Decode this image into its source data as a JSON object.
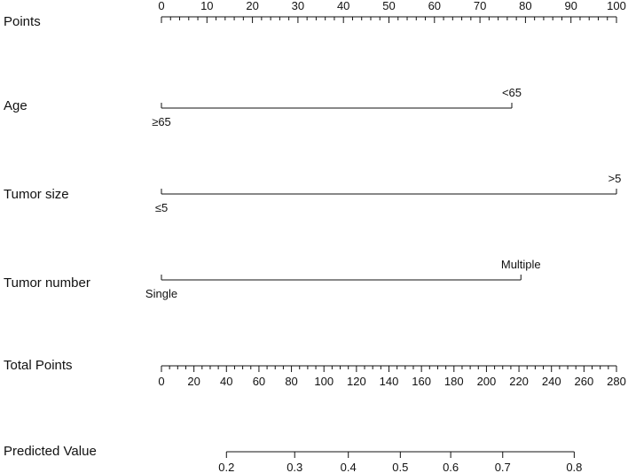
{
  "chart_data": {
    "type": "nomogram",
    "title": "",
    "rows": {
      "points": {
        "label": "Points",
        "range": [
          0,
          100
        ],
        "tick_labels": [
          "0",
          "10",
          "20",
          "30",
          "40",
          "50",
          "60",
          "70",
          "80",
          "90",
          "100"
        ],
        "tick_values": [
          0,
          10,
          20,
          30,
          40,
          50,
          60,
          70,
          80,
          90,
          100
        ],
        "minor_step": 2
      },
      "age": {
        "label": "Age",
        "levels": [
          {
            "label": "≥65",
            "points": 0
          },
          {
            "label": "<65",
            "points": 77
          }
        ]
      },
      "tumor_size": {
        "label": "Tumor size",
        "levels": [
          {
            "label": "≤5",
            "points": 0
          },
          {
            "label": ">5",
            "points": 100
          }
        ]
      },
      "tumor_number": {
        "label": "Tumor number",
        "levels": [
          {
            "label": "Single",
            "points": 0
          },
          {
            "label": "Multiple",
            "points": 79
          }
        ]
      },
      "total_points": {
        "label": "Total Points",
        "range": [
          0,
          280
        ],
        "tick_labels": [
          "0",
          "20",
          "40",
          "60",
          "80",
          "100",
          "120",
          "140",
          "160",
          "180",
          "200",
          "220",
          "240",
          "260",
          "280"
        ],
        "tick_values": [
          0,
          20,
          40,
          60,
          80,
          100,
          120,
          140,
          160,
          180,
          200,
          220,
          240,
          260,
          280
        ],
        "minor_step": 5
      },
      "predicted_value": {
        "label": "Predicted Value",
        "total_points_at_ticks": [
          40,
          82,
          115,
          147,
          178,
          210,
          254
        ],
        "tick_labels": [
          "0.2",
          "0.3",
          "0.4",
          "0.5",
          "0.6",
          "0.7",
          "0.8"
        ],
        "tick_values": [
          0.2,
          0.3,
          0.4,
          0.5,
          0.6,
          0.7,
          0.8
        ]
      }
    }
  }
}
